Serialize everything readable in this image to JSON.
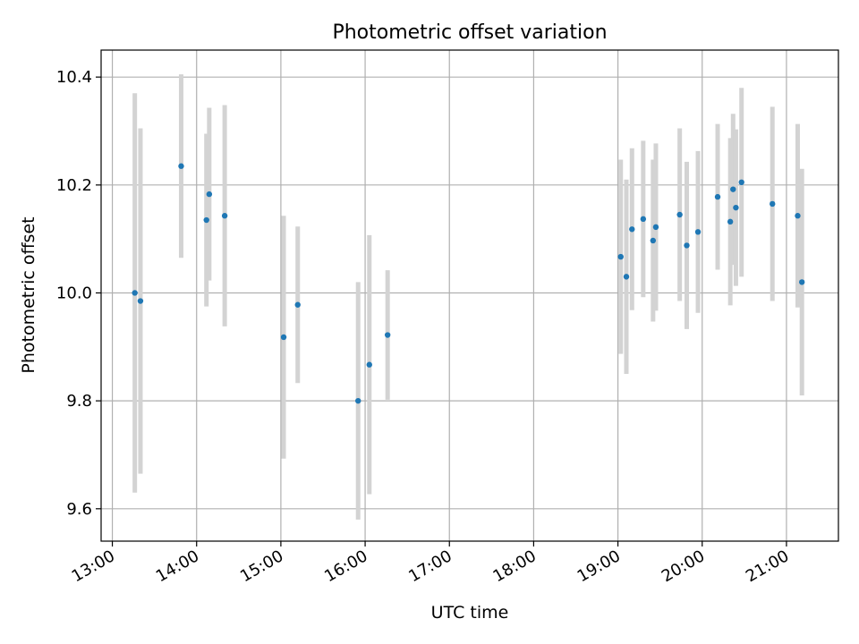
{
  "chart_data": {
    "type": "scatter",
    "title": "Photometric offset variation",
    "xlabel": "UTC time",
    "ylabel": "Photometric offset",
    "x_ticks": [
      "13:00",
      "14:00",
      "15:00",
      "16:00",
      "17:00",
      "18:00",
      "19:00",
      "20:00",
      "21:00"
    ],
    "y_ticks": [
      "9.6",
      "9.8",
      "10.0",
      "10.2",
      "10.4"
    ],
    "x_range": [
      "12:52",
      "21:37"
    ],
    "ylim": [
      9.54,
      10.45
    ],
    "grid": true,
    "series": [
      {
        "marker_color": "#1f77b4",
        "errorbar_color": "#d3d3d3",
        "points": [
          {
            "time": "13:16",
            "value": 10.0,
            "low": 9.63,
            "high": 10.37
          },
          {
            "time": "13:20",
            "value": 9.985,
            "low": 9.665,
            "high": 10.305
          },
          {
            "time": "13:49",
            "value": 10.235,
            "low": 10.065,
            "high": 10.405
          },
          {
            "time": "14:07",
            "value": 10.135,
            "low": 9.975,
            "high": 10.295
          },
          {
            "time": "14:09",
            "value": 10.183,
            "low": 10.023,
            "high": 10.343
          },
          {
            "time": "14:20",
            "value": 10.143,
            "low": 9.938,
            "high": 10.348
          },
          {
            "time": "15:02",
            "value": 9.918,
            "low": 9.693,
            "high": 10.143
          },
          {
            "time": "15:12",
            "value": 9.978,
            "low": 9.833,
            "high": 10.123
          },
          {
            "time": "15:55",
            "value": 9.8,
            "low": 9.58,
            "high": 10.02
          },
          {
            "time": "16:03",
            "value": 9.867,
            "low": 9.627,
            "high": 10.107
          },
          {
            "time": "16:16",
            "value": 9.922,
            "low": 9.802,
            "high": 10.042
          },
          {
            "time": "19:02",
            "value": 10.067,
            "low": 9.887,
            "high": 10.247
          },
          {
            "time": "19:06",
            "value": 10.03,
            "low": 9.85,
            "high": 10.21
          },
          {
            "time": "19:10",
            "value": 10.118,
            "low": 9.968,
            "high": 10.268
          },
          {
            "time": "19:18",
            "value": 10.137,
            "low": 9.992,
            "high": 10.282
          },
          {
            "time": "19:25",
            "value": 10.097,
            "low": 9.947,
            "high": 10.247
          },
          {
            "time": "19:27",
            "value": 10.122,
            "low": 9.967,
            "high": 10.277
          },
          {
            "time": "19:44",
            "value": 10.145,
            "low": 9.985,
            "high": 10.305
          },
          {
            "time": "19:49",
            "value": 10.088,
            "low": 9.933,
            "high": 10.243
          },
          {
            "time": "19:57",
            "value": 10.113,
            "low": 9.963,
            "high": 10.263
          },
          {
            "time": "20:11",
            "value": 10.178,
            "low": 10.043,
            "high": 10.313
          },
          {
            "time": "20:20",
            "value": 10.132,
            "low": 9.977,
            "high": 10.287
          },
          {
            "time": "20:22",
            "value": 10.192,
            "low": 10.052,
            "high": 10.332
          },
          {
            "time": "20:24",
            "value": 10.158,
            "low": 10.013,
            "high": 10.303
          },
          {
            "time": "20:28",
            "value": 10.205,
            "low": 10.03,
            "high": 10.38
          },
          {
            "time": "20:50",
            "value": 10.165,
            "low": 9.985,
            "high": 10.345
          },
          {
            "time": "21:08",
            "value": 10.143,
            "low": 9.973,
            "high": 10.313
          },
          {
            "time": "21:11",
            "value": 10.02,
            "low": 9.81,
            "high": 10.23
          }
        ]
      }
    ]
  }
}
